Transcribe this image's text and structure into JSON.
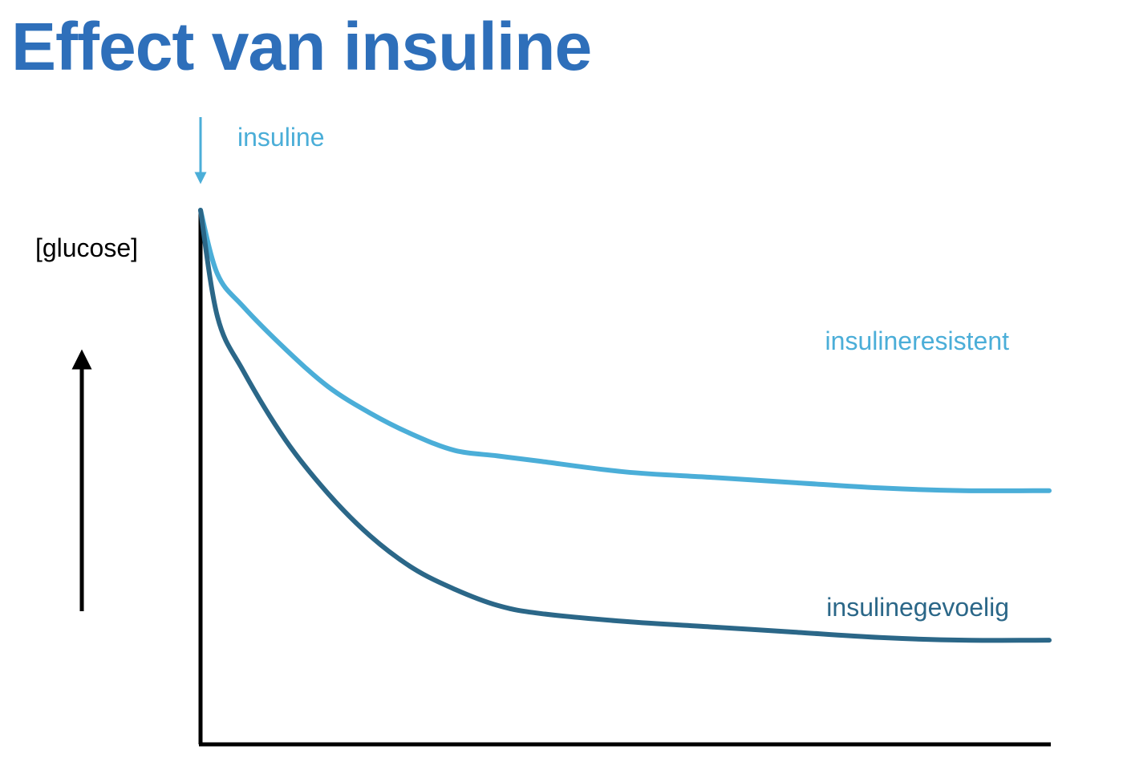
{
  "title": "Effect van insuline",
  "colors": {
    "title": "#2e6fba",
    "light": "#4baed8",
    "dark": "#2b6788",
    "axis": "#000000"
  },
  "chart_data": {
    "type": "line",
    "title": "Effect van insuline",
    "xlabel": "",
    "ylabel": "[glucose]",
    "ylabel_arrow": "up",
    "xlim": [
      0,
      1
    ],
    "ylim": [
      0,
      1
    ],
    "grid": false,
    "legend": "inline-labels",
    "annotation": {
      "label": "insuline",
      "x": 0,
      "marker": "down-arrow"
    },
    "series": [
      {
        "name": "insulineresistent",
        "color": "#4baed8",
        "x": [
          0,
          0.02,
          0.05,
          0.1,
          0.15,
          0.2,
          0.25,
          0.3,
          0.35,
          0.4,
          0.5,
          0.6,
          0.7,
          0.8,
          0.9,
          1.0
        ],
        "y": [
          1.0,
          0.88,
          0.82,
          0.74,
          0.67,
          0.62,
          0.58,
          0.55,
          0.54,
          0.53,
          0.51,
          0.5,
          0.49,
          0.48,
          0.475,
          0.475
        ]
      },
      {
        "name": "insulinegevoelig",
        "color": "#2b6788",
        "x": [
          0,
          0.02,
          0.05,
          0.1,
          0.15,
          0.2,
          0.25,
          0.3,
          0.35,
          0.4,
          0.5,
          0.6,
          0.7,
          0.8,
          0.9,
          1.0
        ],
        "y": [
          1.0,
          0.8,
          0.7,
          0.57,
          0.47,
          0.39,
          0.33,
          0.29,
          0.26,
          0.245,
          0.23,
          0.22,
          0.21,
          0.2,
          0.195,
          0.195
        ]
      }
    ]
  }
}
